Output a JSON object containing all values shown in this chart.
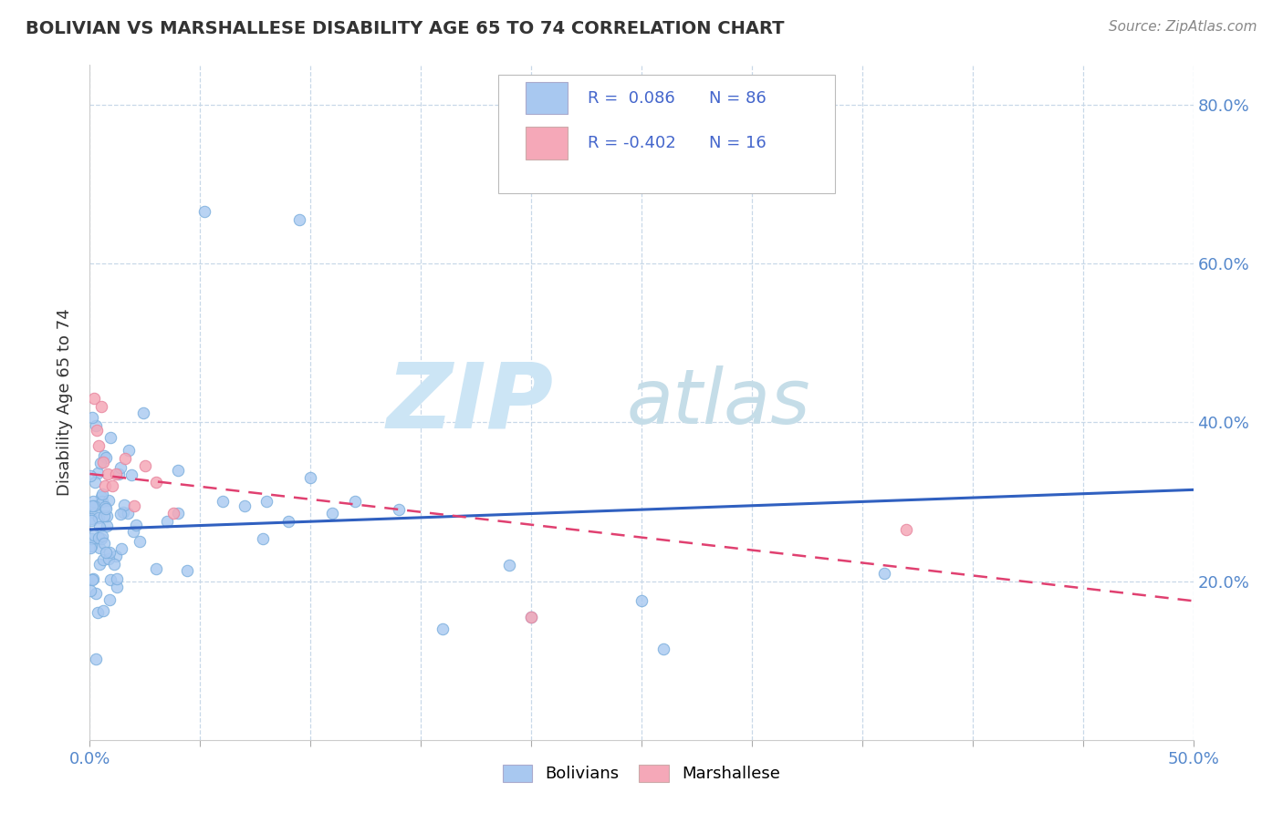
{
  "title": "BOLIVIAN VS MARSHALLESE DISABILITY AGE 65 TO 74 CORRELATION CHART",
  "source_text": "Source: ZipAtlas.com",
  "ylabel": "Disability Age 65 to 74",
  "xlim": [
    0.0,
    0.5
  ],
  "ylim": [
    0.0,
    0.85
  ],
  "ytick_positions": [
    0.2,
    0.4,
    0.6,
    0.8
  ],
  "yticklabels_right": [
    "20.0%",
    "40.0%",
    "60.0%",
    "80.0%"
  ],
  "bolivian_color": "#a8c8f0",
  "bolivian_edge_color": "#7aaedd",
  "marshallese_color": "#f5a8b8",
  "marshallese_edge_color": "#e888a0",
  "bolivian_line_color": "#3060c0",
  "marshallese_line_color": "#e04070",
  "watermark_zip_color": "#b8d8f0",
  "watermark_atlas_color": "#c8e0e8",
  "background_color": "#ffffff",
  "grid_color": "#c8d8e8",
  "tick_label_color": "#5588cc",
  "legend_text_color": "#4466cc",
  "title_color": "#333333",
  "source_color": "#888888",
  "ylabel_color": "#333333",
  "bolivian_line_x": [
    0.0,
    0.5
  ],
  "bolivian_line_y": [
    0.265,
    0.315
  ],
  "marshallese_line_x": [
    0.0,
    0.5
  ],
  "marshallese_line_y": [
    0.335,
    0.175
  ]
}
